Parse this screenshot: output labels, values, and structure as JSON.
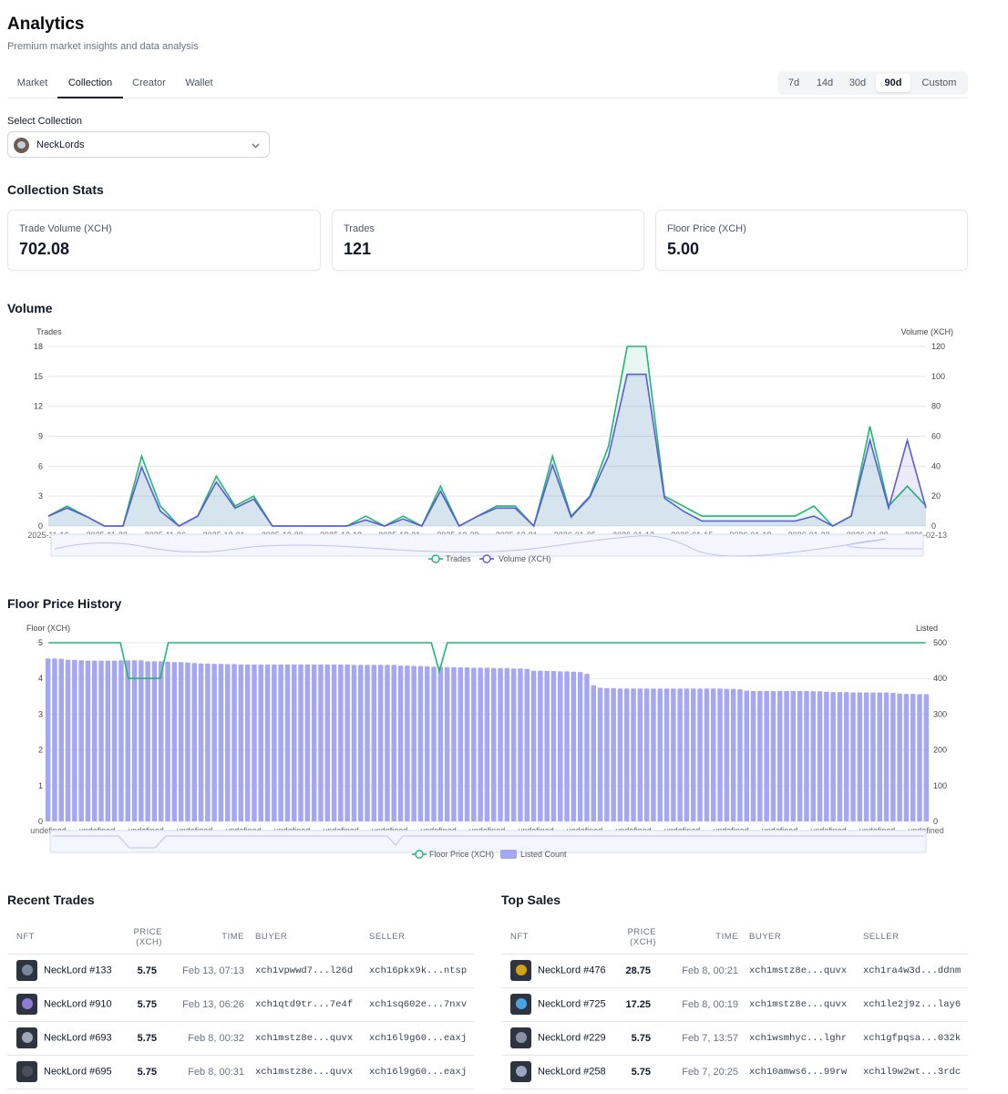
{
  "header": {
    "title": "Analytics",
    "subtitle": "Premium market insights and data analysis"
  },
  "tabs": [
    "Market",
    "Collection",
    "Creator",
    "Wallet"
  ],
  "active_tab": "Collection",
  "ranges": [
    "7d",
    "14d",
    "30d",
    "90d",
    "Custom"
  ],
  "active_range": "90d",
  "select_collection": {
    "label": "Select Collection",
    "value": "NeckLords"
  },
  "stats": {
    "title": "Collection Stats",
    "cards": [
      {
        "label": "Trade Volume (XCH)",
        "value": "702.08"
      },
      {
        "label": "Trades",
        "value": "121"
      },
      {
        "label": "Floor Price (XCH)",
        "value": "5.00"
      }
    ]
  },
  "chart_data": [
    {
      "type": "area",
      "title": "Volume",
      "left_axis_label": "Trades",
      "right_axis_label": "Volume (XCH)",
      "left_ticks": [
        "0",
        "3",
        "6",
        "9",
        "12",
        "15",
        "18"
      ],
      "right_ticks": [
        "0",
        "20",
        "40",
        "60",
        "80",
        "100",
        "120"
      ],
      "ylim_left": [
        0,
        18
      ],
      "ylim_right": [
        0,
        120
      ],
      "x_ticks": [
        "2025-11-16",
        "2025-11-22",
        "2025-11-26",
        "2025-12-01",
        "2025-12-09",
        "2025-12-18",
        "2025-12-21",
        "2025-12-28",
        "2025-12-31",
        "2026-01-05",
        "2026-01-12",
        "2026-01-15",
        "2026-01-18",
        "2026-01-22",
        "2026-01-28",
        "2026-02-13"
      ],
      "series": [
        {
          "name": "Trades",
          "color": "#22b573",
          "axis": "left",
          "values": [
            1,
            2,
            1,
            0,
            0,
            7,
            2,
            0,
            1,
            5,
            2,
            3,
            0,
            0,
            0,
            0,
            0,
            1,
            0,
            1,
            0,
            4,
            0,
            1,
            2,
            2,
            0,
            7,
            1,
            3,
            8,
            18,
            18,
            3,
            2,
            1,
            1,
            1,
            1,
            1,
            1,
            2,
            0,
            1,
            10,
            2,
            4,
            2
          ]
        },
        {
          "name": "Volume (XCH)",
          "color": "#5b5bd6",
          "axis": "left",
          "values": [
            1,
            1.8,
            1,
            0,
            0,
            5.9,
            1.5,
            0,
            1,
            4.4,
            1.8,
            2.7,
            0,
            0,
            0,
            0,
            0,
            0.6,
            0,
            0.7,
            0,
            3.5,
            0,
            1,
            1.8,
            1.8,
            0,
            6.1,
            0.9,
            2.9,
            7,
            15.2,
            15.2,
            2.8,
            1.5,
            0.5,
            0.5,
            0.5,
            0.5,
            0.5,
            0.5,
            1,
            0,
            1,
            8.6,
            1.8,
            8.6,
            1.8
          ]
        }
      ],
      "legend": [
        "Trades",
        "Volume (XCH)"
      ]
    },
    {
      "type": "bar",
      "title": "Floor Price History",
      "left_axis_label": "Floor (XCH)",
      "right_axis_label": "Listed",
      "left_ticks": [
        "0",
        "1",
        "2",
        "3",
        "4",
        "5"
      ],
      "right_ticks": [
        "0",
        "100",
        "200",
        "300",
        "400",
        "500"
      ],
      "ylim_left": [
        0,
        5
      ],
      "ylim_right": [
        0,
        500
      ],
      "x_ticks": [
        "undefined",
        "undefined",
        "undefined",
        "undefined",
        "undefined",
        "undefined",
        "undefined",
        "undefined",
        "undefined",
        "undefined",
        "undefined",
        "undefined",
        "undefined",
        "undefined",
        "undefined",
        "undefined",
        "undefined",
        "undefined",
        "undefined"
      ],
      "series": [
        {
          "name": "Floor Price (XCH)",
          "color": "#22b573",
          "axis": "left",
          "values": [
            5,
            5,
            5,
            5,
            5,
            5,
            5,
            5,
            5,
            5,
            4,
            4,
            4,
            4,
            4,
            5,
            5,
            5,
            5,
            5,
            5,
            5,
            5,
            5,
            5,
            5,
            5,
            5,
            5,
            5,
            5,
            5,
            5,
            5,
            5,
            5,
            5,
            5,
            5,
            5,
            5,
            5,
            5,
            5,
            5,
            5,
            5,
            5,
            5,
            4.2,
            5,
            5,
            5,
            5,
            5,
            5,
            5,
            5,
            5,
            5,
            5,
            5,
            5,
            5,
            5,
            5,
            5,
            5,
            5,
            5,
            5,
            5,
            5,
            5,
            5,
            5,
            5,
            5,
            5,
            5,
            5,
            5,
            5,
            5,
            5,
            5,
            5,
            5,
            5,
            5,
            5,
            5,
            5,
            5,
            5,
            5,
            5,
            5,
            5,
            5,
            5,
            5,
            5,
            5,
            5,
            5,
            5,
            5,
            5,
            5,
            5
          ]
        },
        {
          "name": "Listed Count",
          "color": "#a5a8f0",
          "axis": "right",
          "values": [
            456,
            456,
            455,
            452,
            452,
            451,
            450,
            450,
            450,
            450,
            450,
            451,
            451,
            451,
            451,
            448,
            448,
            448,
            447,
            446,
            446,
            445,
            443,
            442,
            442,
            441,
            441,
            440,
            440,
            439,
            439,
            439,
            439,
            439,
            439,
            439,
            439,
            439,
            439,
            439,
            439,
            439,
            439,
            439,
            439,
            439,
            438,
            438,
            438,
            438,
            438,
            438,
            438,
            436,
            436,
            435,
            435,
            434,
            433,
            433,
            432,
            432,
            431,
            431,
            430,
            430,
            430,
            429,
            429,
            429,
            428,
            428,
            427,
            422,
            422,
            421,
            421,
            420,
            420,
            419,
            418,
            413,
            381,
            374,
            373,
            373,
            372,
            372,
            372,
            372,
            372,
            372,
            372,
            372,
            372,
            372,
            372,
            372,
            372,
            372,
            372,
            372,
            371,
            371,
            370,
            366,
            365,
            365,
            365,
            365,
            365,
            365,
            365,
            365,
            365,
            364,
            364,
            363,
            362,
            362,
            362,
            361,
            361,
            361,
            361,
            361,
            361,
            360,
            358,
            357,
            357,
            356,
            356
          ]
        }
      ],
      "legend": [
        "Floor Price (XCH)",
        "Listed Count"
      ]
    }
  ],
  "recent_trades": {
    "title": "Recent Trades",
    "columns": [
      "NFT",
      "PRICE (XCH)",
      "TIME",
      "BUYER",
      "SELLER"
    ],
    "rows": [
      {
        "nft": "NeckLord #133",
        "price": "5.75",
        "time": "Feb 13, 07:13",
        "buyer": "xch1vpwwd7...l26d",
        "seller": "xch16pkx9k...ntsp",
        "thumb": "#7b8799"
      },
      {
        "nft": "NeckLord #910",
        "price": "5.75",
        "time": "Feb 13, 06:26",
        "buyer": "xch1qtd9tr...7e4f",
        "seller": "xch1sq602e...7nxv",
        "thumb": "#8e7bd6"
      },
      {
        "nft": "NeckLord #693",
        "price": "5.75",
        "time": "Feb 8, 00:32",
        "buyer": "xch1mstz8e...quvx",
        "seller": "xch16l9g60...eaxj",
        "thumb": "#a1a7b8"
      },
      {
        "nft": "NeckLord #695",
        "price": "5.75",
        "time": "Feb 8, 00:31",
        "buyer": "xch1mstz8e...quvx",
        "seller": "xch16l9g60...eaxj",
        "thumb": "#4a4f5a"
      }
    ]
  },
  "top_sales": {
    "title": "Top Sales",
    "columns": [
      "NFT",
      "PRICE (XCH)",
      "TIME",
      "BUYER",
      "SELLER"
    ],
    "rows": [
      {
        "nft": "NeckLord #476",
        "price": "28.75",
        "time": "Feb 8, 00:21",
        "buyer": "xch1mstz8e...quvx",
        "seller": "xch1ra4w3d...ddnm",
        "thumb": "#d4a017"
      },
      {
        "nft": "NeckLord #725",
        "price": "17.25",
        "time": "Feb 8, 00:19",
        "buyer": "xch1mstz8e...quvx",
        "seller": "xch1le2j9z...lay6",
        "thumb": "#4aa3df"
      },
      {
        "nft": "NeckLord #229",
        "price": "5.75",
        "time": "Feb 7, 13:57",
        "buyer": "xch1wsmhyc...lghr",
        "seller": "xch1gfpqsa...032k",
        "thumb": "#8a93a6"
      },
      {
        "nft": "NeckLord #258",
        "price": "5.75",
        "time": "Feb 7, 20:25",
        "buyer": "xch10amws6...99rw",
        "seller": "xch1l9w2wt...3rdc",
        "thumb": "#9aa4c0"
      }
    ]
  }
}
